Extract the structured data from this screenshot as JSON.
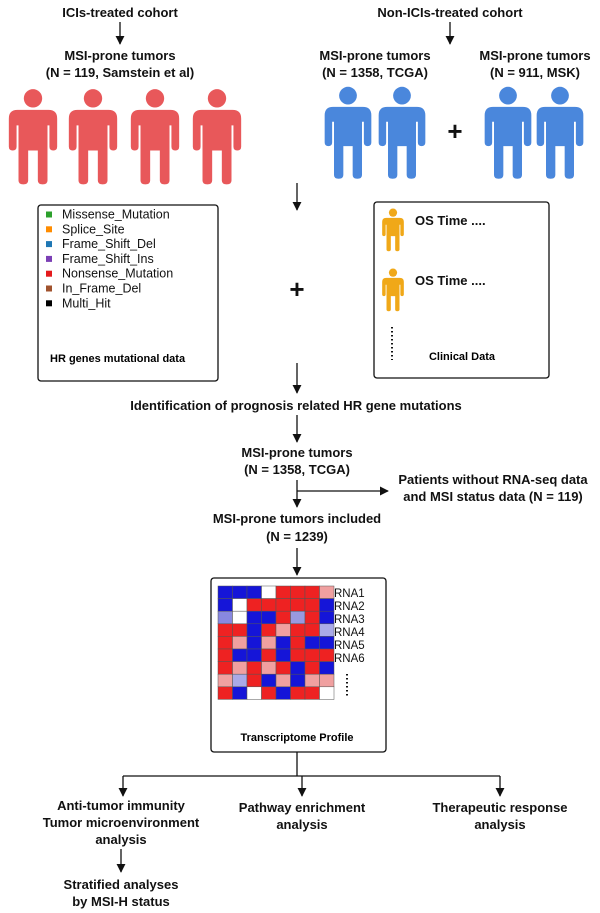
{
  "cohorts": {
    "icis": {
      "header": "ICIs-treated cohort",
      "title": "MSI-prone tumors",
      "subtitle": "(N = 119, Samstein et al)",
      "color": "#e8585a",
      "people": 4
    },
    "non_icis": {
      "header": "Non-ICIs-treated cohort",
      "tcga_title": "MSI-prone tumors",
      "tcga_subtitle": "(N = 1358, TCGA)",
      "msk_title": "MSI-prone tumors",
      "msk_subtitle": "(N = 911, MSK)",
      "color": "#4a87dc",
      "plus": "+"
    }
  },
  "mutation_box": {
    "title": "HR genes mutational data",
    "legend": [
      {
        "label": "Missense_Mutation",
        "color": "#2ca02c"
      },
      {
        "label": "Splice_Site",
        "color": "#ff8c00"
      },
      {
        "label": "Frame_Shift_Del",
        "color": "#1f77b4"
      },
      {
        "label": "Frame_Shift_Ins",
        "color": "#7b3fb5"
      },
      {
        "label": "Nonsense_Mutation",
        "color": "#e41a1c"
      },
      {
        "label": "In_Frame_Del",
        "color": "#a0522d"
      },
      {
        "label": "Multi_Hit",
        "color": "#000000"
      }
    ]
  },
  "plus_middle": "+",
  "clinical_box": {
    "title": "Clinical Data",
    "rows": [
      "OS Time  ....",
      "OS Time  ...."
    ],
    "person_color": "#f0a818"
  },
  "steps": {
    "identification": "Identification of prognosis related HR gene mutations",
    "tcga_title": "MSI-prone tumors",
    "tcga_subtitle": "(N = 1358, TCGA)",
    "excluded_line1": "Patients without RNA-seq data",
    "excluded_line2": "and MSI status data (N = 119)",
    "included_title": "MSI-prone tumors included",
    "included_subtitle": "(N = 1239)"
  },
  "transcriptome_box": {
    "title": "Transcriptome Profile",
    "rna_labels": [
      "RNA1",
      "RNA2",
      "RNA3",
      "RNA4",
      "RNA5",
      "RNA6"
    ],
    "heatmap": [
      [
        "#1515d8",
        "#1515d8",
        "#1515d8",
        "#ffffff",
        "#ee2222",
        "#ee2222",
        "#ee2222",
        "#f0a0a0"
      ],
      [
        "#1515d8",
        "#ffffff",
        "#ee2222",
        "#ee2222",
        "#ee2222",
        "#ee2222",
        "#ee2222",
        "#1515d8"
      ],
      [
        "#8888e0",
        "#ffffff",
        "#1515d8",
        "#1515d8",
        "#ee2222",
        "#9999e0",
        "#ee2222",
        "#1515d8"
      ],
      [
        "#ee2222",
        "#ee2222",
        "#1515d8",
        "#ee2222",
        "#f0a0a0",
        "#ee2222",
        "#ee2222",
        "#aaaae8"
      ],
      [
        "#ee2222",
        "#f0a0a0",
        "#1515d8",
        "#f0a0a0",
        "#1515d8",
        "#ee2222",
        "#1515d8",
        "#1515d8"
      ],
      [
        "#ee2222",
        "#1515d8",
        "#1515d8",
        "#ee2222",
        "#1515d8",
        "#ee2222",
        "#ee2222",
        "#ee2222"
      ],
      [
        "#ee2222",
        "#f0a0a0",
        "#ee2222",
        "#f0a0a0",
        "#ee2222",
        "#1515d8",
        "#ee2222",
        "#1515d8"
      ],
      [
        "#f0a0a0",
        "#aaaae8",
        "#ee2222",
        "#1515d8",
        "#f0a0a0",
        "#1515d8",
        "#f0a0a0",
        "#f0a0a0"
      ],
      [
        "#ee2222",
        "#1515d8",
        "#ffffff",
        "#ee2222",
        "#1515d8",
        "#ee2222",
        "#ee2222",
        "#ffffff"
      ]
    ]
  },
  "outputs": {
    "immunity_line1": "Anti-tumor immunity",
    "immunity_line2": "Tumor microenvironment",
    "immunity_line3": "analysis",
    "pathway_line1": "Pathway enrichment",
    "pathway_line2": "analysis",
    "therapeutic_line1": "Therapeutic response",
    "therapeutic_line2": "analysis",
    "stratified_line1": "Stratified analyses",
    "stratified_line2": "by MSI-H status"
  }
}
